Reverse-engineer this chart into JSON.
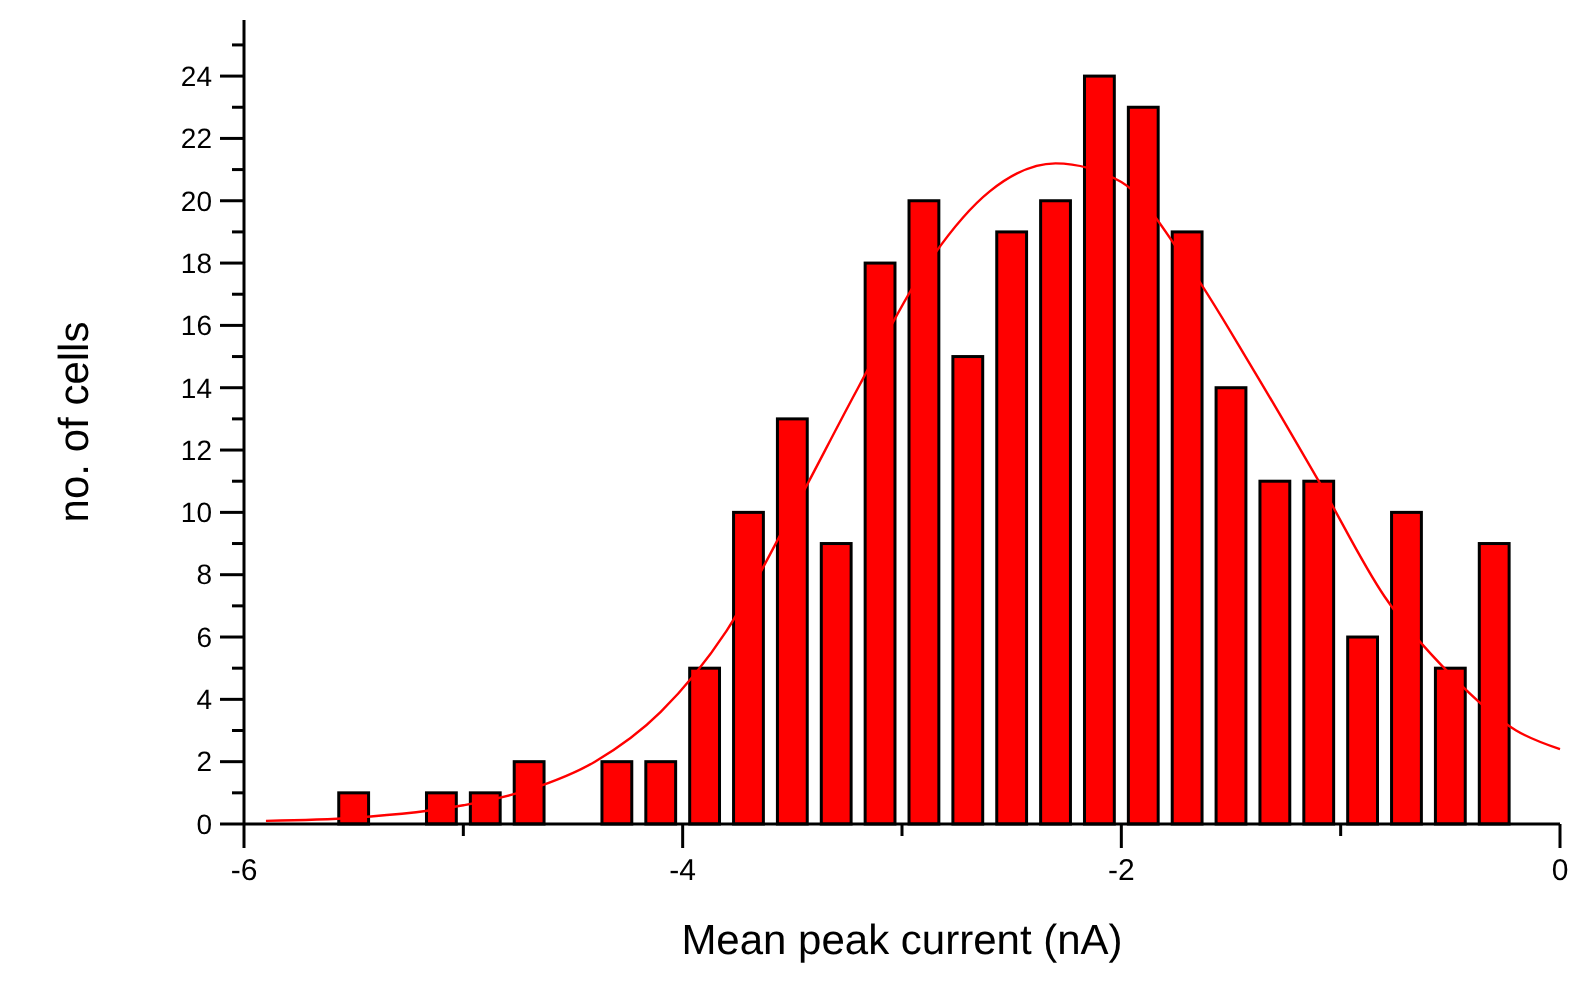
{
  "chart_data": {
    "type": "histogram",
    "xlabel": "Mean peak current (nA)",
    "ylabel": "no. of cells",
    "bins": [
      -5.6,
      -5.4,
      -5.2,
      -5.0,
      -4.8,
      -4.6,
      -4.4,
      -4.2,
      -4.0,
      -3.8,
      -3.6,
      -3.4,
      -3.2,
      -3.0,
      -2.8,
      -2.6,
      -2.4,
      -2.2,
      -2.0,
      -1.8,
      -1.6,
      -1.4,
      -1.2,
      -1.0,
      -0.8,
      -0.6,
      -0.4,
      -0.2
    ],
    "series": [
      {
        "color": "#ff0000",
        "values": [
          1,
          0,
          1,
          1,
          2,
          0,
          2,
          2,
          5,
          10,
          13,
          9,
          18,
          20,
          15,
          19,
          20,
          24,
          23,
          19,
          14,
          11,
          11,
          6,
          10,
          5,
          9
        ]
      },
      {
        "type": "line",
        "color": "#ff0000",
        "x": [
          -5.9,
          -5.5,
          -5.0,
          -4.7,
          -4.4,
          -4.1,
          -3.8,
          -3.5,
          -3.2,
          -2.9,
          -2.6,
          -2.3,
          -2.0,
          -1.7,
          -1.4,
          -1.1,
          -0.8,
          -0.5,
          -0.2,
          0
        ],
        "values": [
          0.1,
          0.2,
          0.6,
          1.1,
          2.0,
          3.6,
          6.2,
          10.0,
          14.0,
          17.8,
          20.3,
          21.2,
          20.6,
          18.0,
          14.6,
          11.0,
          7.3,
          4.8,
          3.0,
          2.4
        ]
      }
    ],
    "xlim": [
      -6,
      0
    ],
    "xticks": [
      -6,
      {
        "value": -5,
        "label": null
      },
      -4,
      {
        "value": -3,
        "label": null
      },
      -2,
      {
        "value": -1,
        "label": null
      },
      0
    ],
    "ylim": [
      0,
      25.8
    ],
    "yticks": [
      0,
      {
        "value": 1,
        "label": null
      },
      2,
      {
        "value": 3,
        "label": null
      },
      4,
      {
        "value": 5,
        "label": null
      },
      6,
      {
        "value": 7,
        "label": null
      },
      8,
      {
        "value": 9,
        "label": null
      },
      10,
      {
        "value": 11,
        "label": null
      },
      12,
      {
        "value": 13,
        "label": null
      },
      14,
      {
        "value": 15,
        "label": null
      },
      16,
      {
        "value": 17,
        "label": null
      },
      18,
      {
        "value": 19,
        "label": null
      },
      20,
      {
        "value": 21,
        "label": null
      },
      22,
      {
        "value": 23,
        "label": null
      },
      24,
      {
        "value": 25,
        "label": null
      }
    ],
    "grid": false,
    "marker": "none",
    "line_style": "solid"
  }
}
